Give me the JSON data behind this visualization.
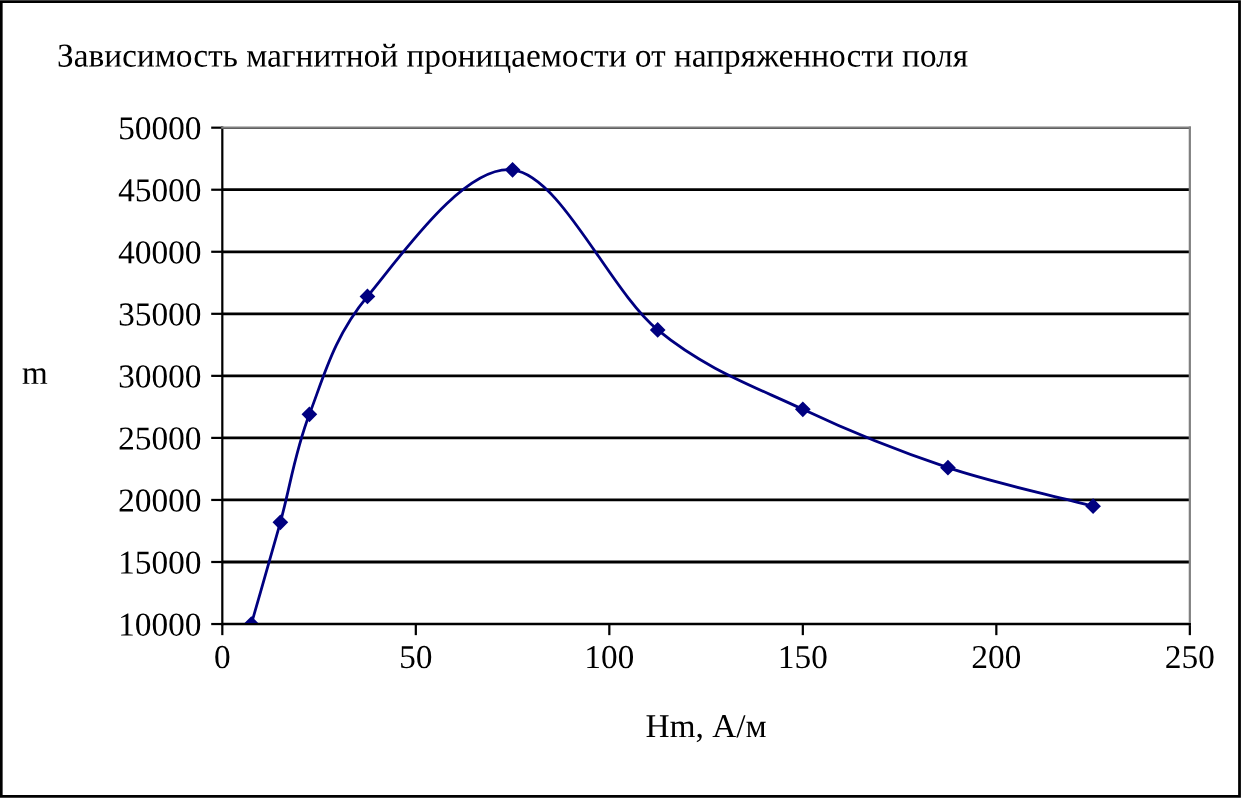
{
  "chart_data": {
    "type": "line",
    "title": "Зависимость магнитной проницаемости от напряженности поля",
    "xlabel": "Hm, А/м",
    "ylabel": "m",
    "x": [
      7.5,
      15,
      22.5,
      37.5,
      75,
      112.5,
      150,
      187.5,
      225
    ],
    "series": [
      {
        "color": "#000080",
        "values": [
          10000,
          18200,
          26900,
          36400,
          46600,
          33700,
          27300,
          22600,
          19500
        ]
      }
    ],
    "xlim": [
      0,
      250
    ],
    "xticks": [
      0,
      50,
      100,
      150,
      200,
      250
    ],
    "ylim": [
      10000,
      50000
    ],
    "yticks": [
      10000,
      15000,
      20000,
      25000,
      30000,
      35000,
      40000,
      45000,
      50000
    ],
    "grid": "y",
    "legend": false,
    "marker": "diamond",
    "line_style": "solid"
  }
}
